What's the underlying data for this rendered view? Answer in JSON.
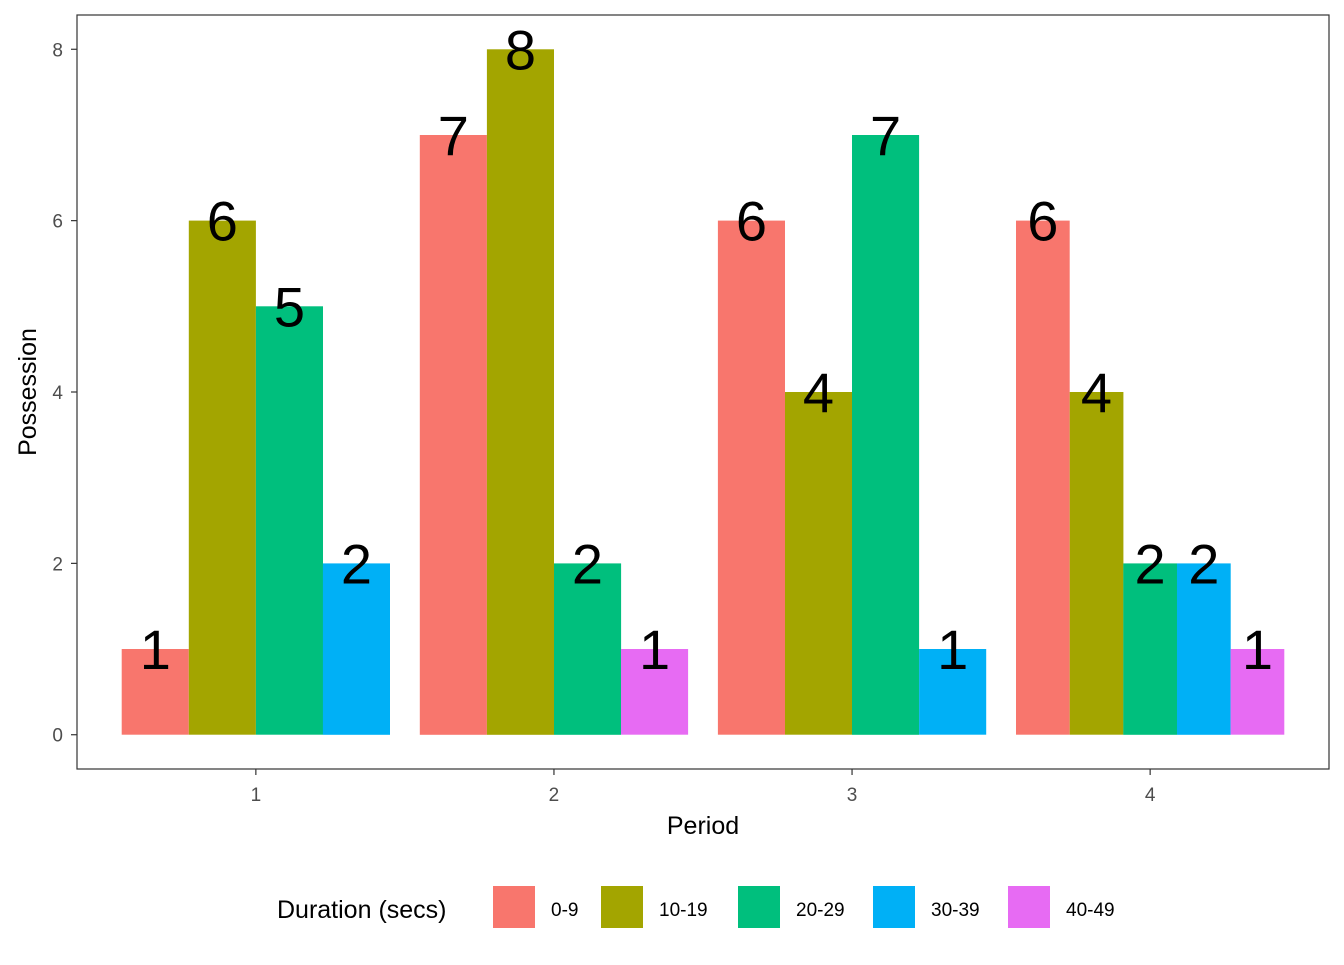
{
  "chart_data": {
    "type": "bar",
    "title": "",
    "xlabel": "Period",
    "ylabel": "Possession",
    "categories": [
      "1",
      "2",
      "3",
      "4"
    ],
    "yticks": [
      "0",
      "2",
      "4",
      "6",
      "8"
    ],
    "ylim": [
      -0.4,
      8.4
    ],
    "grid": false,
    "legend": {
      "title": "Duration (secs)",
      "position": "bottom"
    },
    "series": [
      {
        "name": "0-9",
        "color": "#F8766D",
        "values": [
          1,
          7,
          6,
          6
        ]
      },
      {
        "name": "10-19",
        "color": "#A3A500",
        "values": [
          6,
          8,
          4,
          4
        ]
      },
      {
        "name": "20-29",
        "color": "#00BF7D",
        "values": [
          5,
          2,
          7,
          2
        ]
      },
      {
        "name": "30-39",
        "color": "#00B0F6",
        "values": [
          2,
          null,
          1,
          2
        ]
      },
      {
        "name": "40-49",
        "color": "#E76BF3",
        "values": [
          null,
          1,
          null,
          1
        ]
      }
    ]
  }
}
